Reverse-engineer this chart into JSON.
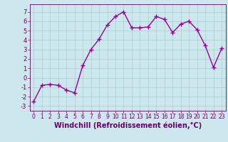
{
  "x": [
    0,
    1,
    2,
    3,
    4,
    5,
    6,
    7,
    8,
    9,
    10,
    11,
    12,
    13,
    14,
    15,
    16,
    17,
    18,
    19,
    20,
    21,
    22,
    23
  ],
  "y": [
    -2.5,
    -0.8,
    -0.7,
    -0.8,
    -1.3,
    -1.6,
    1.3,
    3.0,
    4.1,
    5.6,
    6.5,
    7.0,
    5.3,
    5.3,
    5.4,
    6.5,
    6.2,
    4.8,
    5.7,
    6.0,
    5.1,
    3.4,
    1.1,
    3.1
  ],
  "line_color": "#990099",
  "marker": "+",
  "markersize": 4,
  "linewidth": 1.0,
  "bg_color": "#cce8ee",
  "grid_color": "#aacccc",
  "tick_color": "#660066",
  "xlabel": "Windchill (Refroidissement éolien,°C)",
  "xlabel_fontsize": 7,
  "ylim": [
    -3.5,
    7.8
  ],
  "xlim": [
    -0.5,
    23.5
  ],
  "yticks": [
    -3,
    -2,
    -1,
    0,
    1,
    2,
    3,
    4,
    5,
    6,
    7
  ],
  "xticks": [
    0,
    1,
    2,
    3,
    4,
    5,
    6,
    7,
    8,
    9,
    10,
    11,
    12,
    13,
    14,
    15,
    16,
    17,
    18,
    19,
    20,
    21,
    22,
    23
  ]
}
